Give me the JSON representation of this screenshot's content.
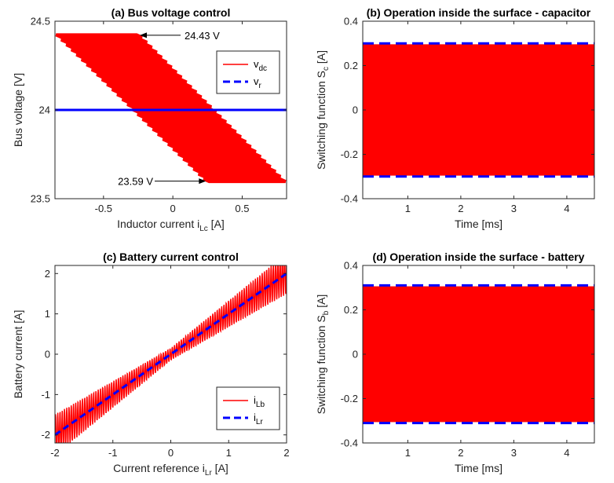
{
  "colors": {
    "red": "#ff0000",
    "blue": "#0000ff",
    "axis": "#262626"
  },
  "chart_data": [
    {
      "id": "a",
      "type": "line",
      "title": "(a) Bus voltage control",
      "xlabel": "Inductor current i",
      "xlabel_sub": "Lc",
      "xlabel_unit": " [A]",
      "ylabel": "Bus voltage [V]",
      "xlim": [
        -0.85,
        0.82
      ],
      "ylim": [
        23.5,
        24.5
      ],
      "xticks": [
        -0.5,
        0,
        0.5
      ],
      "xtick_labels": [
        "-0.5",
        "0",
        "0.5"
      ],
      "yticks": [
        23.5,
        24,
        24.5
      ],
      "ytick_labels": [
        "23.5",
        "24",
        "24.5"
      ],
      "band": {
        "top": 24.43,
        "bottom": 23.59,
        "top_x": [
          -0.85,
          -0.25
        ],
        "bottom_x": [
          0.25,
          0.82
        ]
      },
      "reference": 24,
      "series": [
        {
          "name": "v",
          "sub": "dc",
          "color": "#ff0000",
          "style": "solid"
        },
        {
          "name": "v",
          "sub": "r",
          "color": "#0000ff",
          "style": "dashed"
        }
      ],
      "legend": "top-right",
      "annotations": [
        {
          "text": "24.43 V",
          "x": -0.25,
          "y": 24.43
        },
        {
          "text": "23.59 V",
          "x": 0.25,
          "y": 23.59
        }
      ]
    },
    {
      "id": "b",
      "type": "line",
      "title": "(b) Operation inside the surface - capacitor",
      "xlabel": "Time [ms]",
      "ylabel": "Switching function S",
      "ylabel_sub": "c",
      "ylabel_unit": " [A]",
      "xlim": [
        0.15,
        4.52
      ],
      "ylim": [
        -0.4,
        0.4
      ],
      "xticks": [
        1,
        2,
        3,
        4
      ],
      "xtick_labels": [
        "1",
        "2",
        "3",
        "4"
      ],
      "yticks": [
        -0.4,
        -0.2,
        0,
        0.2,
        0.4
      ],
      "ytick_labels": [
        "-0.4",
        "-0.2",
        "0",
        "0.2",
        "0.4"
      ],
      "band": [
        -0.296,
        0.296
      ],
      "bounds": [
        -0.3,
        0.3
      ]
    },
    {
      "id": "c",
      "type": "line",
      "title": "(c) Battery current control",
      "xlabel": "Current reference i",
      "xlabel_sub": "Lr",
      "xlabel_unit": " [A]",
      "ylabel": "Battery current [A]",
      "xlim": [
        -2,
        2
      ],
      "ylim": [
        -2.2,
        2.2
      ],
      "xticks": [
        -2,
        -1,
        0,
        1,
        2
      ],
      "xtick_labels": [
        "-2",
        "-1",
        "0",
        "1",
        "2"
      ],
      "yticks": [
        -2,
        -1,
        0,
        1,
        2
      ],
      "ytick_labels": [
        "-2",
        "-1",
        "0",
        "1",
        "2"
      ],
      "series": [
        {
          "name": "i",
          "sub": "Lb",
          "color": "#ff0000",
          "style": "solid"
        },
        {
          "name": "i",
          "sub": "Lr",
          "color": "#0000ff",
          "style": "dashed"
        }
      ],
      "legend": "bottom-right"
    },
    {
      "id": "d",
      "type": "line",
      "title": "(d) Operation inside the surface - battery",
      "xlabel": "Time [ms]",
      "ylabel": "Switching function S",
      "ylabel_sub": "b",
      "ylabel_unit": " [A]",
      "xlim": [
        0.15,
        4.52
      ],
      "ylim": [
        -0.4,
        0.4
      ],
      "xticks": [
        1,
        2,
        3,
        4
      ],
      "xtick_labels": [
        "1",
        "2",
        "3",
        "4"
      ],
      "yticks": [
        -0.4,
        -0.2,
        0,
        0.2,
        0.4
      ],
      "ytick_labels": [
        "-0.4",
        "-0.2",
        "0",
        "0.2",
        "0.4"
      ],
      "band": [
        -0.306,
        0.306
      ],
      "bounds": [
        -0.31,
        0.31
      ]
    }
  ]
}
